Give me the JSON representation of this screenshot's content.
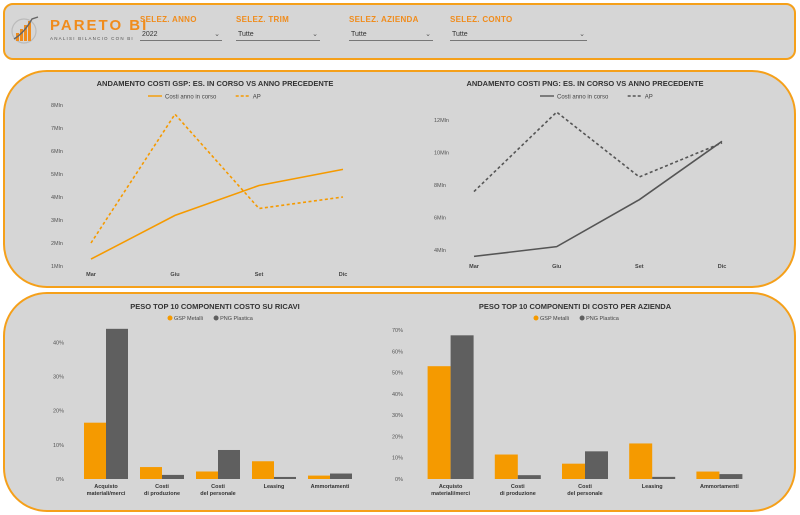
{
  "colors": {
    "accent": "#f08c1c",
    "orange": "#f59a00",
    "dark": "#5f5f5f",
    "panel": "#d6d6d6"
  },
  "brand": {
    "name": "PARETO BI",
    "tagline": "ANALISI BILANCIO CON BI"
  },
  "filters": [
    {
      "label": "SELEZ. ANNO",
      "value": "2022"
    },
    {
      "label": "SELEZ. TRIM",
      "value": "Tutte"
    },
    {
      "label": "SELEZ. AZIENDA",
      "value": "Tutte"
    },
    {
      "label": "SELEZ. CONTO",
      "value": "Tutte"
    }
  ],
  "chart_data": [
    {
      "type": "line",
      "title": "ANDAMENTO COSTI GSP: ES. IN CORSO VS ANNO PRECEDENTE",
      "categories": [
        "Mar",
        "Giu",
        "Set",
        "Dic"
      ],
      "y_ticks": [
        "1Mln",
        "2Mln",
        "3Mln",
        "4Mln",
        "5Mln",
        "6Mln",
        "7Mln",
        "8Mln"
      ],
      "ylim": [
        1,
        8
      ],
      "series": [
        {
          "name": "Costi anno in corso",
          "values": [
            1.3,
            3.2,
            4.5,
            5.2
          ],
          "color": "#f59a00",
          "dash": false
        },
        {
          "name": "AP",
          "values": [
            2.0,
            7.6,
            3.5,
            4.0
          ],
          "color": "#f59a00",
          "dash": true
        }
      ]
    },
    {
      "type": "line",
      "title": "ANDAMENTO COSTI PNG: ES. IN CORSO VS ANNO PRECEDENTE",
      "categories": [
        "Mar",
        "Giu",
        "Set",
        "Dic"
      ],
      "y_ticks": [
        "4Mln",
        "6Mln",
        "8Mln",
        "10Mln",
        "12Mln"
      ],
      "ylim": [
        3.5,
        13
      ],
      "series": [
        {
          "name": "Costi anno in corso",
          "values": [
            3.6,
            4.2,
            7.1,
            10.7
          ],
          "color": "#555555",
          "dash": false
        },
        {
          "name": "AP",
          "values": [
            7.6,
            12.5,
            8.5,
            10.6
          ],
          "color": "#555555",
          "dash": true
        }
      ]
    },
    {
      "type": "bar",
      "title": "PESO TOP 10 COMPONENTI COSTO SU RICAVI",
      "categories": [
        "Acquisto materiali/merci",
        "Costi di produzione",
        "Costi del personale",
        "Leasing",
        "Ammortamenti"
      ],
      "y_ticks": [
        "0%",
        "10%",
        "20%",
        "30%",
        "40%"
      ],
      "ylim": [
        0,
        46
      ],
      "series": [
        {
          "name": "GSP Metalli",
          "values": [
            16.5,
            3.5,
            2.2,
            5.2,
            1.0
          ],
          "color": "#f59a00"
        },
        {
          "name": "PNG Plastica",
          "values": [
            44.0,
            1.2,
            8.5,
            0.6,
            1.6
          ],
          "color": "#5f5f5f"
        }
      ]
    },
    {
      "type": "bar",
      "title": "PESO TOP 10 COMPONENTI DI COSTO PER AZIENDA",
      "categories": [
        "Acquisto materiali/merci",
        "Costi di produzione",
        "Costi del personale",
        "Leasing",
        "Ammortamenti"
      ],
      "y_ticks": [
        "0%",
        "10%",
        "20%",
        "30%",
        "40%",
        "50%",
        "60%",
        "70%"
      ],
      "ylim": [
        0,
        70
      ],
      "series": [
        {
          "name": "GSP Metalli",
          "values": [
            53.0,
            11.5,
            7.2,
            16.7,
            3.5
          ],
          "color": "#f59a00"
        },
        {
          "name": "PNG Plastica",
          "values": [
            67.5,
            1.8,
            13.0,
            1.0,
            2.3
          ],
          "color": "#5f5f5f"
        }
      ]
    }
  ]
}
